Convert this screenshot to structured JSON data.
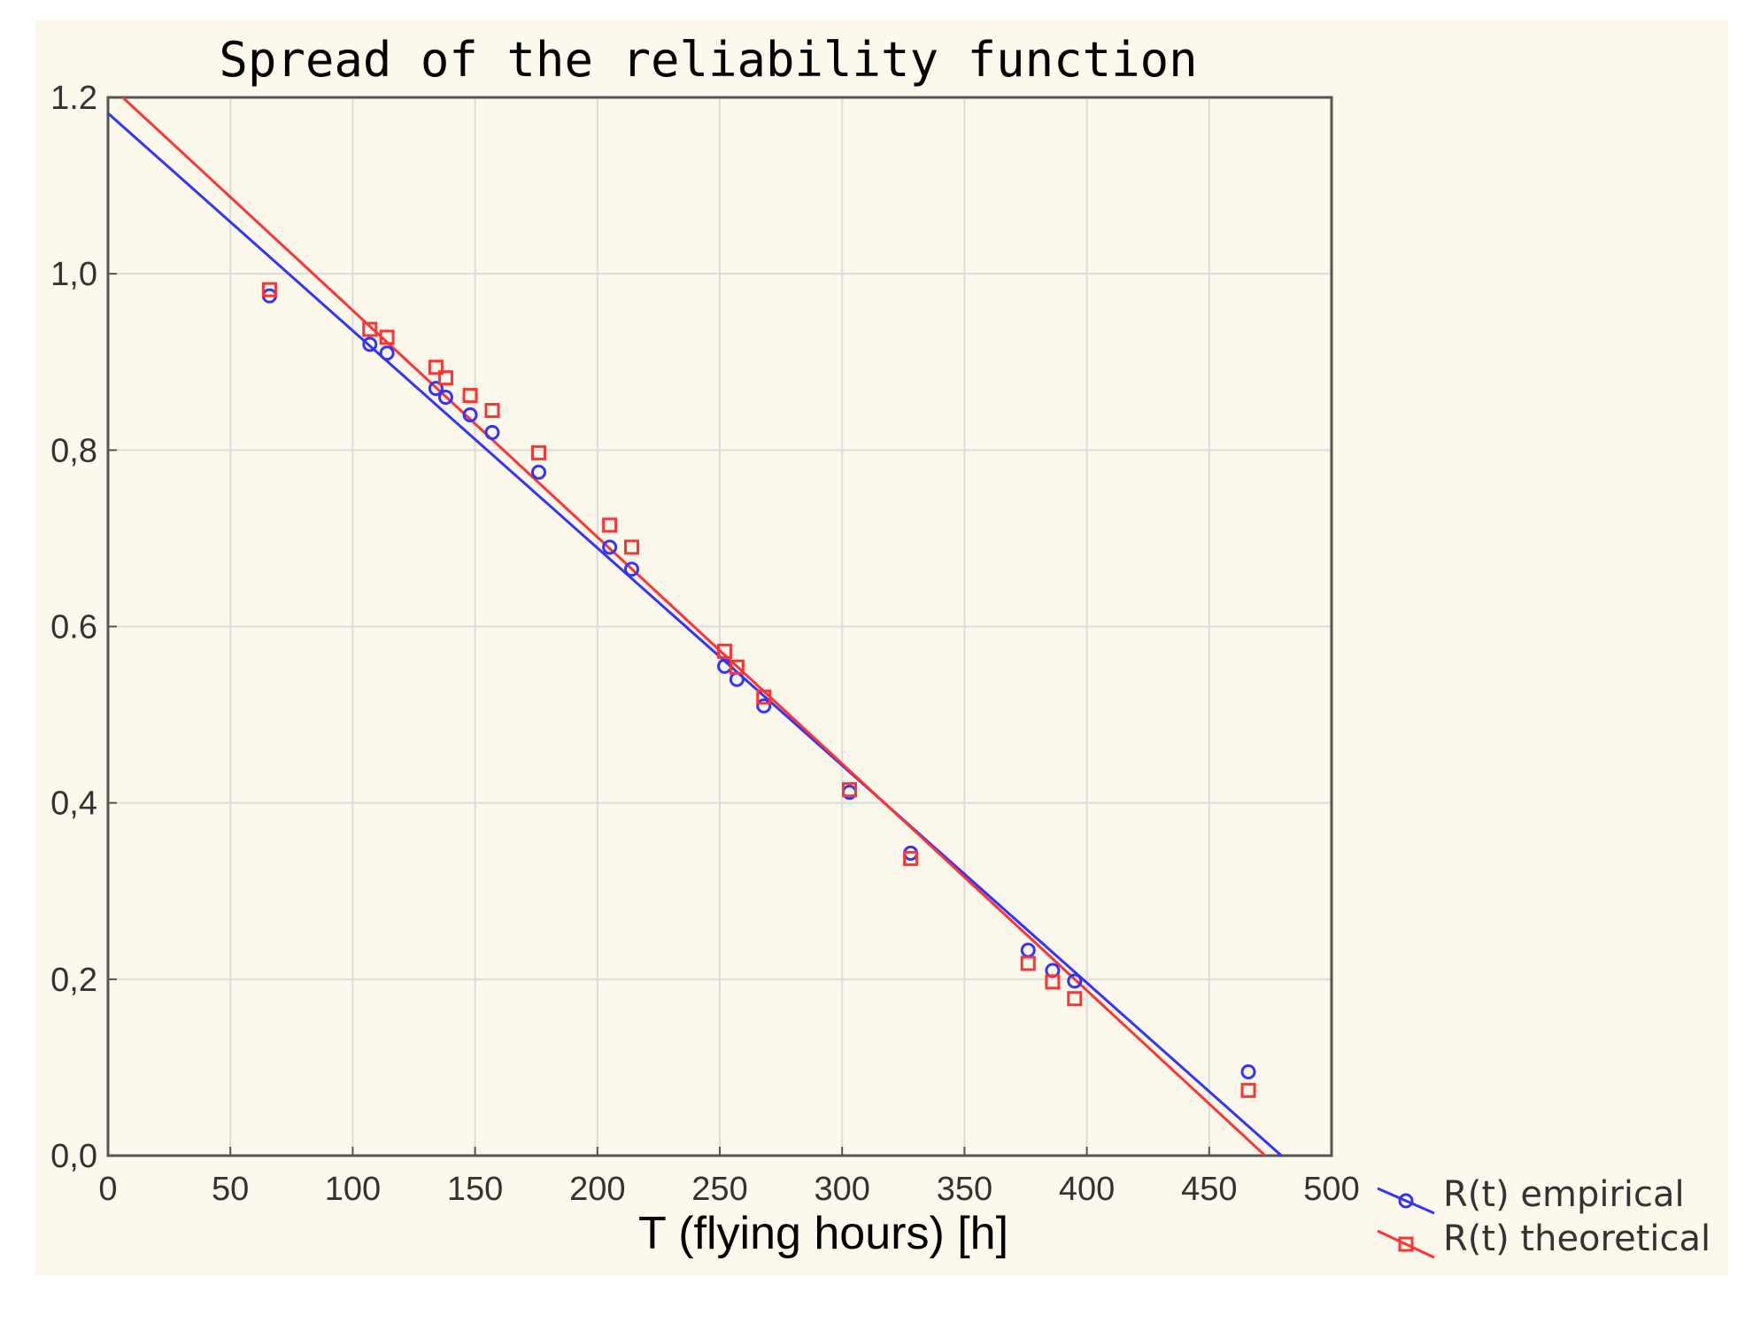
{
  "chart_data": {
    "type": "scatter",
    "title": "Spread of the reliability function",
    "xlabel": "T (flying hours) [h]",
    "ylabel": "",
    "xlim": [
      0,
      500
    ],
    "ylim": [
      0.0,
      1.2
    ],
    "grid": true,
    "x_ticks": [
      0,
      50,
      100,
      150,
      200,
      250,
      300,
      350,
      400,
      450,
      500
    ],
    "x_tick_labels": [
      "0",
      "50",
      "100",
      "150",
      "200",
      "250",
      "300",
      "350",
      "400",
      "450",
      "500"
    ],
    "y_ticks": [
      0.0,
      0.2,
      0.4,
      0.6,
      0.8,
      1.0,
      1.2
    ],
    "y_tick_labels": [
      "0,0",
      "0,2",
      "0,4",
      "0.6",
      "0,8",
      "1,0",
      "1.2"
    ],
    "legend_position": "bottom-right outside",
    "series": [
      {
        "name": "R(t) empirical",
        "color": "#3333ff",
        "marker": "circle",
        "x": [
          66,
          107,
          114,
          134,
          138,
          148,
          157,
          176,
          205,
          214,
          252,
          257,
          268,
          303,
          328,
          376,
          386,
          395,
          466
        ],
        "y": [
          0.975,
          0.92,
          0.91,
          0.87,
          0.86,
          0.84,
          0.82,
          0.775,
          0.69,
          0.665,
          0.555,
          0.54,
          0.51,
          0.412,
          0.343,
          0.233,
          0.21,
          0.198,
          0.095
        ],
        "fit_line": {
          "slope": -0.002465,
          "intercept": 1.182
        }
      },
      {
        "name": "R(t) theoretical",
        "color": "#ff3333",
        "marker": "square",
        "x": [
          66,
          107,
          114,
          134,
          138,
          148,
          157,
          176,
          205,
          214,
          252,
          257,
          268,
          303,
          328,
          376,
          386,
          395,
          466
        ],
        "y": [
          0.982,
          0.937,
          0.928,
          0.894,
          0.882,
          0.862,
          0.845,
          0.797,
          0.715,
          0.69,
          0.572,
          0.554,
          0.52,
          0.415,
          0.337,
          0.218,
          0.197,
          0.178,
          0.074
        ],
        "fit_line": {
          "slope": -0.0025705,
          "intercept": 1.2155
        }
      }
    ]
  }
}
